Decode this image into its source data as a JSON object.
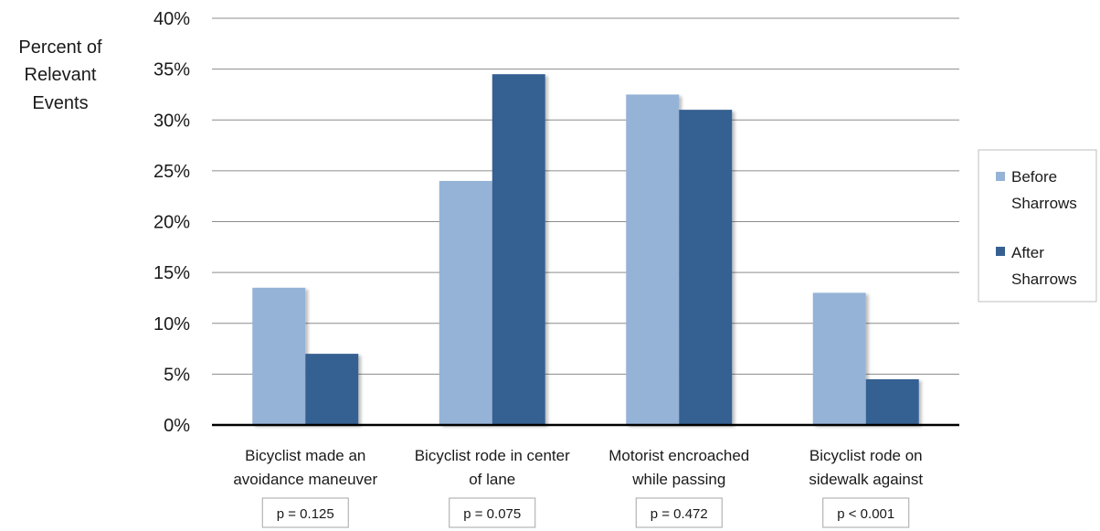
{
  "chart_data": {
    "type": "bar",
    "ylabel": [
      "Percent of",
      "Relevant",
      "Events"
    ],
    "ylim": [
      0,
      40
    ],
    "ytick_step": 5,
    "ytick_suffix": "%",
    "grid": true,
    "legend_position": "right",
    "categories": [
      [
        "Bicyclist made an",
        "avoidance maneuver"
      ],
      [
        "Bicyclist rode in center",
        "of lane"
      ],
      [
        "Motorist encroached",
        "while passing"
      ],
      [
        "Bicyclist rode on",
        "sidewalk against"
      ]
    ],
    "p_values": [
      "p = 0.125",
      "p = 0.075",
      "p = 0.472",
      "p < 0.001"
    ],
    "series": [
      {
        "name": [
          "Before",
          "Sharrows"
        ],
        "color": "#95b3d7",
        "values": [
          13.5,
          24,
          32.5,
          13
        ]
      },
      {
        "name": [
          "After",
          "Sharrows"
        ],
        "color": "#366092",
        "values": [
          7,
          34.5,
          31,
          4.5
        ]
      }
    ]
  }
}
